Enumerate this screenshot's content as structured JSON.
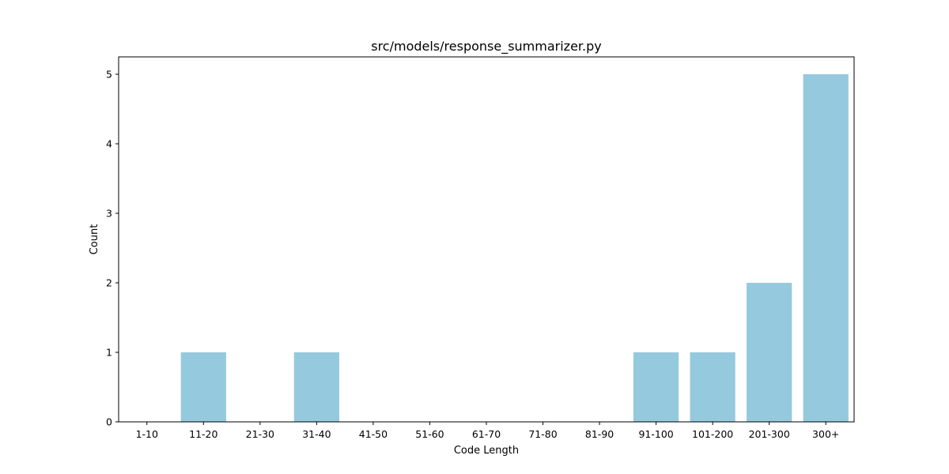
{
  "chart_data": {
    "type": "bar",
    "title": "src/models/response_summarizer.py",
    "xlabel": "Code Length",
    "ylabel": "Count",
    "categories": [
      "1-10",
      "11-20",
      "21-30",
      "31-40",
      "41-50",
      "51-60",
      "61-70",
      "71-80",
      "81-90",
      "91-100",
      "101-200",
      "201-300",
      "300+"
    ],
    "values": [
      0,
      1,
      0,
      1,
      0,
      0,
      0,
      0,
      0,
      1,
      1,
      2,
      5
    ],
    "ylim": [
      0,
      5.25
    ],
    "yticks": [
      0,
      1,
      2,
      3,
      4,
      5
    ],
    "grid": false,
    "bar_color": "#95c9de"
  }
}
